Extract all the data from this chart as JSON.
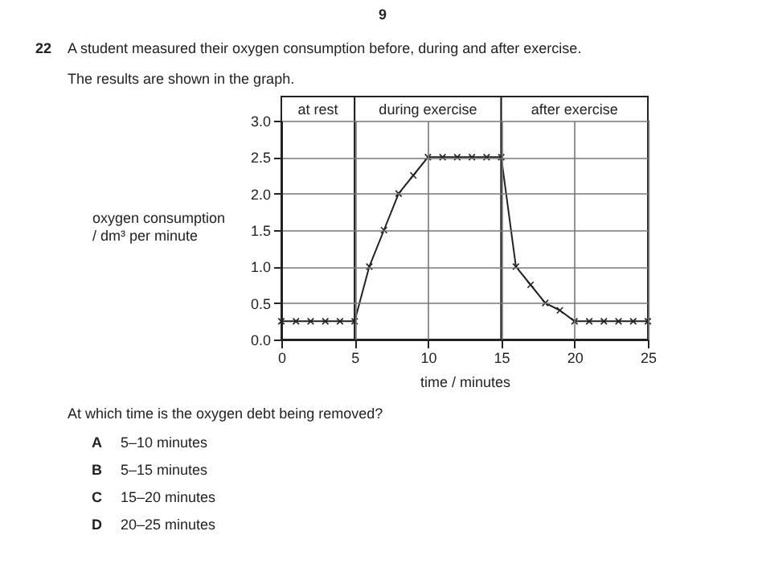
{
  "chart_data": {
    "type": "line",
    "title": "A student measured their oxygen consumption before, during and after exercise.",
    "xlabel": "time / minutes",
    "ylabel": "oxygen consumption\n/ dm³ per minute",
    "annotations": [
      "9",
      "22",
      "The results are shown in the graph.",
      "At which time is the oxygen debt being removed?",
      "A",
      "5–10 minutes",
      "B",
      "5–15 minutes",
      "C",
      "15–20 minutes",
      "D",
      "20–25 minutes"
    ],
    "x": [
      0,
      1,
      2,
      3,
      4,
      5,
      6,
      7,
      8,
      9,
      10,
      11,
      12,
      13,
      14,
      15,
      16,
      17,
      18,
      19,
      20,
      21,
      22,
      23,
      24,
      25
    ],
    "series": [
      {
        "color": "#222222",
        "values": [
          0.25,
          0.25,
          0.25,
          0.25,
          0.25,
          0.25,
          1.0,
          1.5,
          2.0,
          2.25,
          2.5,
          2.5,
          2.5,
          2.5,
          2.5,
          2.5,
          1.0,
          0.75,
          0.5,
          0.4,
          0.25,
          0.25,
          0.25,
          0.25,
          0.25,
          0.25
        ]
      }
    ],
    "xlim": [
      0,
      25
    ],
    "xticks": [
      0,
      5,
      10,
      15,
      20,
      25
    ],
    "ylim": [
      0,
      3
    ],
    "yticks": [
      {
        "value": 0,
        "label": "0.0"
      },
      0.5,
      {
        "value": 1,
        "label": "1.0"
      },
      1.5,
      {
        "value": 2,
        "label": "2.0"
      },
      2.5,
      {
        "value": 3,
        "label": "3.0"
      }
    ],
    "bands": [
      {
        "axis": "x",
        "from": 0,
        "to": 5,
        "label": "at rest"
      },
      {
        "axis": "x",
        "from": 5,
        "to": 15,
        "label": "during exercise"
      },
      {
        "axis": "x",
        "from": 15,
        "to": 25,
        "label": "after exercise"
      }
    ],
    "grid": true,
    "marker": "cross",
    "line_style": "solid"
  }
}
